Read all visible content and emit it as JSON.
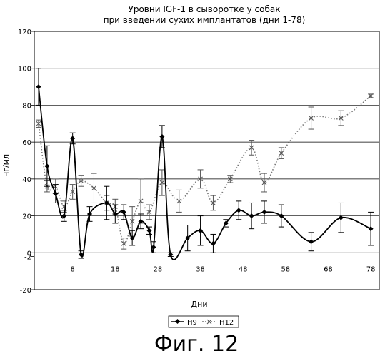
{
  "chart_data": {
    "type": "line",
    "title_line1": "Уровни IGF-1 в сыворотке у собак",
    "title_line2": "при введении сухих имплантатов (дни 1-78)",
    "xlabel": "Дни",
    "ylabel": "нг/мл",
    "xlim": [
      -1,
      80
    ],
    "ylim": [
      -20,
      120
    ],
    "x_ticks": [
      8,
      18,
      28,
      38,
      48,
      58,
      68,
      78
    ],
    "y_ticks": [
      -20,
      -2,
      0,
      20,
      40,
      60,
      80,
      100,
      120
    ],
    "y_tick_labels": [
      "-20",
      "-2",
      "0",
      "20",
      "40",
      "60",
      "80",
      "100",
      "120"
    ],
    "gridlines_y": [
      0,
      20,
      40,
      60,
      80,
      100,
      120
    ],
    "legend_position": "bottom-center",
    "series": [
      {
        "name": "H9",
        "color": "#000000",
        "style": "solid",
        "marker": "diamond",
        "x": [
          0,
          2,
          4,
          6,
          8,
          10,
          12,
          16,
          18,
          20,
          22,
          24,
          26,
          27,
          29,
          31,
          35,
          38,
          41,
          44,
          47,
          50,
          53,
          57,
          64,
          71,
          78
        ],
        "y": [
          90,
          47,
          32,
          20,
          62,
          -1,
          21,
          27,
          21,
          22,
          8,
          17,
          12,
          3,
          63,
          -1,
          8,
          12,
          5,
          16,
          23,
          20,
          22,
          20,
          6,
          19,
          13
        ],
        "err": [
          10,
          11,
          5,
          3,
          3,
          2,
          4,
          9,
          5,
          4,
          4,
          4,
          2,
          3,
          6,
          1,
          7,
          8,
          5,
          2,
          5,
          7,
          6,
          6,
          5,
          8,
          9
        ]
      },
      {
        "name": "H12",
        "color": "#777777",
        "style": "dotted",
        "marker": "x",
        "x": [
          0,
          2,
          4,
          6,
          8,
          10,
          13,
          16,
          18,
          20,
          22,
          24,
          26,
          29,
          33,
          38,
          41,
          45,
          50,
          53,
          57,
          64,
          71,
          78
        ],
        "y": [
          70,
          36,
          36,
          25,
          33,
          39,
          35,
          27,
          25,
          5,
          17,
          28,
          22,
          38,
          28,
          40,
          27,
          40,
          57,
          38,
          54,
          73,
          73,
          85
        ],
        "err": [
          2,
          3,
          4,
          3,
          4,
          3,
          8,
          4,
          4,
          3,
          8,
          12,
          4,
          7,
          6,
          5,
          4,
          2,
          4,
          5,
          3,
          6,
          4,
          1
        ]
      }
    ]
  },
  "figure_caption": "Фиг. 12"
}
